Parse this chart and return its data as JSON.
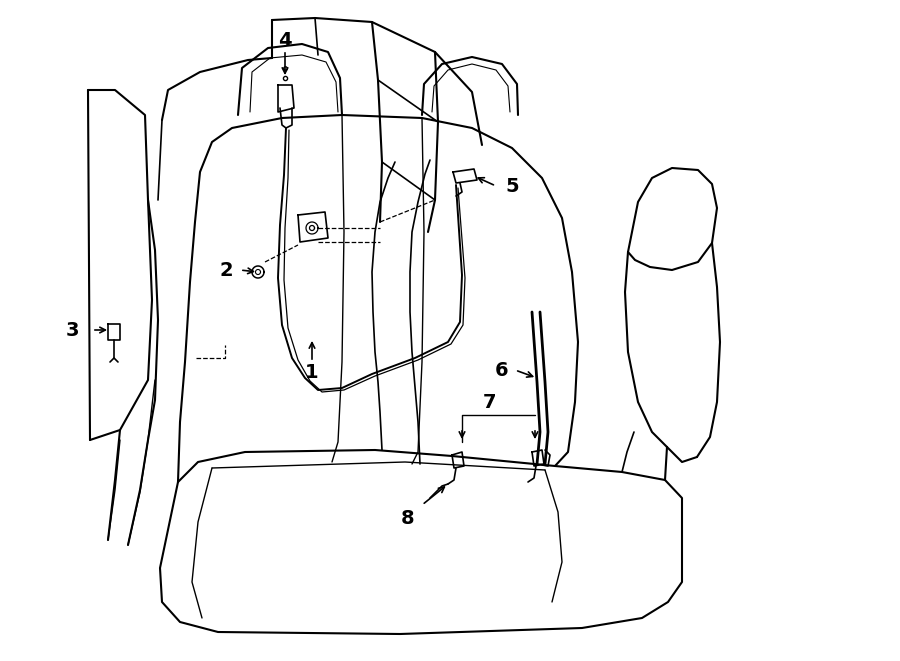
{
  "bg_color": "#ffffff",
  "line_color": "#000000",
  "line_width": 1.2,
  "fig_width": 9.0,
  "fig_height": 6.61,
  "dpi": 100,
  "font_size": 14,
  "label_color": "#000000"
}
